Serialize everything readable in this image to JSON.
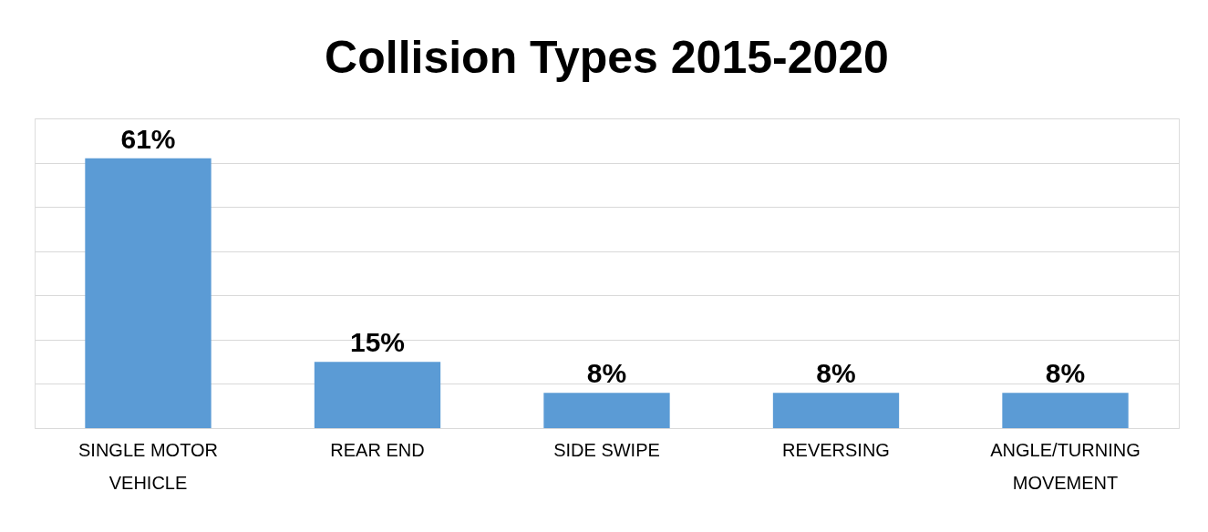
{
  "chart_data": {
    "type": "bar",
    "title": "Collision Types 2015-2020",
    "categories": [
      "SINGLE MOTOR VEHICLE",
      "REAR END",
      "SIDE SWIPE",
      "REVERSING",
      "ANGLE/TURNING MOVEMENT"
    ],
    "values": [
      61,
      15,
      8,
      8,
      8
    ],
    "value_labels": [
      "61%",
      "15%",
      "8%",
      "8%",
      "8%"
    ],
    "color": "#5b9bd5",
    "ylim": [
      0,
      70
    ],
    "yticks": [
      {
        "value": 0,
        "label": null
      },
      {
        "value": 10,
        "label": null
      },
      {
        "value": 20,
        "label": null
      },
      {
        "value": 30,
        "label": null
      },
      {
        "value": 40,
        "label": null
      },
      {
        "value": 50,
        "label": null
      },
      {
        "value": 60,
        "label": null
      },
      {
        "value": 70,
        "label": null
      }
    ],
    "tick_labels": "x",
    "grid": "y"
  }
}
